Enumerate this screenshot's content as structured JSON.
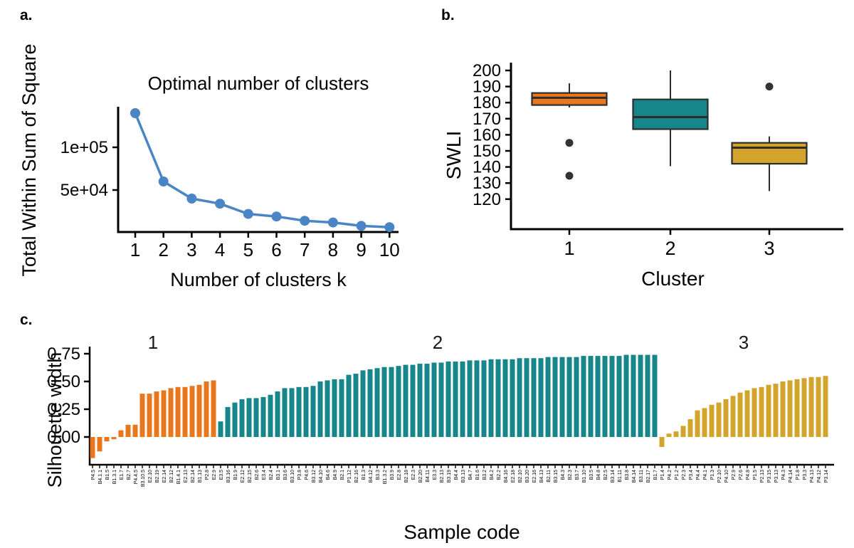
{
  "figure": {
    "background": "#ffffff",
    "panels": {
      "a": {
        "label": "a.",
        "title": "Optimal number of clusters",
        "xlabel": "Number of clusters k",
        "ylabel": "Total Within Sum of Square"
      },
      "b": {
        "label": "b.",
        "xlabel": "Cluster",
        "ylabel": "SWLI"
      },
      "c": {
        "label": "c.",
        "xlabel": "Sample code",
        "ylabel": "Silhouette width"
      }
    }
  },
  "chart_data": [
    {
      "panel": "a",
      "type": "line",
      "title": "Optimal number of clusters",
      "xlabel": "Number of clusters k",
      "ylabel": "Total Within Sum of Square",
      "x": [
        1,
        2,
        3,
        4,
        5,
        6,
        7,
        8,
        9,
        10
      ],
      "y": [
        140000,
        60000,
        40000,
        34000,
        22000,
        19000,
        14000,
        12000,
        8000,
        6500
      ],
      "x_ticks": [
        "1",
        "2",
        "3",
        "4",
        "5",
        "6",
        "7",
        "8",
        "9",
        "10"
      ],
      "y_ticks": [
        {
          "label": "1e+05",
          "value": 100000
        },
        {
          "label": "5e+04",
          "value": 50000
        }
      ],
      "line_color": "#4A86C5",
      "grid": false
    },
    {
      "panel": "b",
      "type": "boxplot",
      "xlabel": "Cluster",
      "ylabel": "SWLI",
      "ylim": [
        120,
        200
      ],
      "y_ticks": [
        200,
        190,
        180,
        170,
        160,
        150,
        140,
        130,
        120
      ],
      "stroke_color": "#2d2d2d",
      "outlier_color": "#333333",
      "groups": [
        {
          "label": "1",
          "color": "#E8771E",
          "whisker_low": 177,
          "q1": 178.5,
          "median": 183,
          "q3": 186,
          "whisker_high": 192,
          "outliers": [
            155,
            134.5
          ]
        },
        {
          "label": "2",
          "color": "#17868B",
          "whisker_low": 140.5,
          "q1": 163.5,
          "median": 171,
          "q3": 182,
          "whisker_high": 200,
          "outliers": []
        },
        {
          "label": "3",
          "color": "#D2A42B",
          "whisker_low": 125,
          "q1": 142,
          "median": 152,
          "q3": 155,
          "whisker_high": 159,
          "outliers": [
            190
          ]
        }
      ]
    },
    {
      "panel": "c",
      "type": "bar",
      "xlabel": "Sample code",
      "ylabel": "Silhouette width",
      "y_ticks": [
        {
          "label": "0.75",
          "value": 0.75
        },
        {
          "label": "0.50",
          "value": 0.5
        },
        {
          "label": "0.25",
          "value": 0.25
        },
        {
          "label": "0.00",
          "value": 0.0
        }
      ],
      "clusters": [
        {
          "label": "1",
          "color": "#E8771E",
          "samples": [
            "P4.5",
            "B4.1.1",
            "B1.5",
            "B1.3.1",
            "E1.7",
            "B2.7",
            "P4.4.5",
            "B3.10.5",
            "E2.10",
            "B2.19",
            "E2.14",
            "B2.12",
            "B1.4.1",
            "E2.13",
            "B2.14",
            "B1.13",
            "P2.8",
            "E2.9"
          ],
          "values": [
            -0.19,
            -0.13,
            -0.04,
            -0.02,
            0.06,
            0.11,
            0.11,
            0.39,
            0.39,
            0.41,
            0.42,
            0.44,
            0.45,
            0.45,
            0.46,
            0.47,
            0.5,
            0.51
          ]
        },
        {
          "label": "2",
          "color": "#17868B",
          "samples": [
            "E3.5",
            "B3.16",
            "B1.9",
            "E2.12",
            "B2.15",
            "B2.6",
            "E3.4",
            "B2.4",
            "B3.1",
            "B3.6",
            "B3.10",
            "P3.8",
            "P4.6",
            "B3.12",
            "B4.10",
            "B4.6",
            "B4.9",
            "B2.1",
            "P1.12",
            "B2.16",
            "B1.3",
            "B4.12",
            "B3.3",
            "B1.3.2",
            "B3.9",
            "E2.8",
            "B2.18",
            "E2.3",
            "B2.20",
            "B4.11",
            "E3.3",
            "B2.13",
            "B3.19",
            "B4.4",
            "B3.13",
            "B4.7",
            "B1.6",
            "B3.2",
            "B4.2",
            "B2.2",
            "B4.16",
            "E2.18",
            "B2.10",
            "B3.20",
            "E2.16",
            "B4.13",
            "B2.11",
            "B3.15",
            "B4.3",
            "B2.3",
            "B3.7",
            "B1.10",
            "B3.5",
            "B4.8",
            "B2.5",
            "B3.14",
            "B1.11",
            "B3.8",
            "B4.14",
            "B3.11",
            "B2.17",
            "B1.7"
          ],
          "values": [
            0.14,
            0.27,
            0.31,
            0.34,
            0.35,
            0.35,
            0.36,
            0.38,
            0.41,
            0.44,
            0.44,
            0.45,
            0.45,
            0.46,
            0.5,
            0.51,
            0.52,
            0.52,
            0.56,
            0.57,
            0.6,
            0.61,
            0.62,
            0.63,
            0.63,
            0.64,
            0.65,
            0.65,
            0.66,
            0.66,
            0.67,
            0.67,
            0.68,
            0.68,
            0.68,
            0.69,
            0.69,
            0.69,
            0.7,
            0.7,
            0.7,
            0.7,
            0.71,
            0.71,
            0.71,
            0.71,
            0.72,
            0.72,
            0.72,
            0.72,
            0.72,
            0.73,
            0.73,
            0.73,
            0.73,
            0.73,
            0.73,
            0.74,
            0.74,
            0.74,
            0.74,
            0.74
          ]
        },
        {
          "label": "3",
          "color": "#D2A42B",
          "samples": [
            "P1.4",
            "P4.2",
            "P1.2",
            "P2.3",
            "P3.4",
            "P4.4",
            "P4.1",
            "P1.3",
            "P2.10",
            "P4.10",
            "P2.9",
            "P2.6",
            "P4.8",
            "P1.5",
            "P2.13",
            "P3.15",
            "P3.13",
            "P4.3",
            "P4.14",
            "P1.8",
            "P3.3",
            "P4.13",
            "P4.12",
            "P3.14"
          ],
          "values": [
            -0.09,
            0.03,
            0.05,
            0.1,
            0.16,
            0.24,
            0.26,
            0.29,
            0.31,
            0.34,
            0.37,
            0.4,
            0.42,
            0.44,
            0.45,
            0.47,
            0.48,
            0.5,
            0.51,
            0.52,
            0.53,
            0.54,
            0.54,
            0.55
          ]
        }
      ]
    }
  ]
}
